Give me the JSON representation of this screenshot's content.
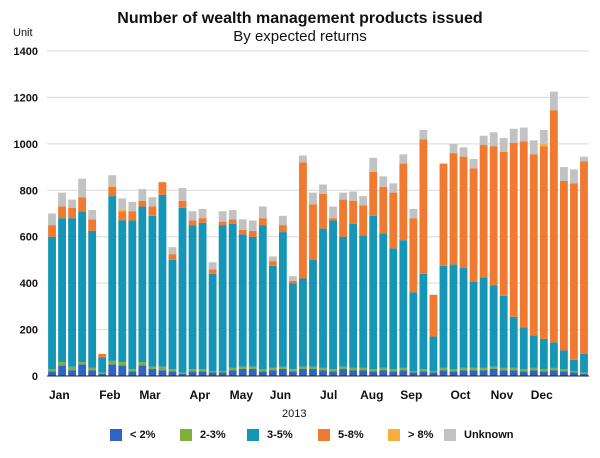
{
  "chart_data": {
    "type": "bar",
    "stacked": true,
    "title": "Number of wealth management products issued",
    "subtitle": "By expected returns",
    "ylabel": "Unit",
    "xlabel": "2013",
    "ylim": [
      0,
      1400
    ],
    "yticks": [
      0,
      200,
      400,
      600,
      800,
      1000,
      1200,
      1400
    ],
    "grid": "horizontal",
    "legend_position": "bottom",
    "month_labels": [
      "Jan",
      "Feb",
      "Mar",
      "Apr",
      "May",
      "Jun",
      "Jul",
      "Aug",
      "Sep",
      "Oct",
      "Nov",
      "Dec"
    ],
    "month_start_week": [
      0,
      5,
      9,
      14,
      18,
      22,
      27,
      31,
      35,
      40,
      44,
      48
    ],
    "series": [
      {
        "name": "< 2%",
        "color": "#2f64c4",
        "values": [
          20,
          45,
          25,
          50,
          25,
          10,
          50,
          45,
          20,
          45,
          30,
          25,
          20,
          10,
          20,
          20,
          15,
          15,
          25,
          30,
          30,
          20,
          25,
          30,
          20,
          30,
          30,
          25,
          20,
          30,
          25,
          25,
          20,
          25,
          20,
          25,
          15,
          20,
          15,
          25,
          20,
          25,
          25,
          25,
          30,
          25,
          25,
          20,
          25,
          20,
          25,
          20,
          15,
          10
        ]
      },
      {
        "name": "2-3%",
        "color": "#7fb03c",
        "values": [
          10,
          15,
          15,
          10,
          10,
          5,
          15,
          15,
          10,
          15,
          10,
          15,
          10,
          5,
          10,
          10,
          5,
          5,
          10,
          10,
          10,
          10,
          10,
          10,
          10,
          10,
          10,
          10,
          10,
          10,
          10,
          10,
          10,
          10,
          10,
          10,
          5,
          10,
          5,
          10,
          10,
          10,
          10,
          10,
          10,
          10,
          10,
          10,
          10,
          10,
          10,
          10,
          5,
          5
        ]
      },
      {
        "name": "3-5%",
        "color": "#1596b6",
        "values": [
          570,
          620,
          640,
          650,
          590,
          65,
          710,
          610,
          640,
          670,
          650,
          740,
          470,
          710,
          620,
          630,
          420,
          630,
          620,
          570,
          560,
          620,
          440,
          580,
          370,
          380,
          460,
          600,
          640,
          560,
          620,
          570,
          660,
          580,
          520,
          550,
          340,
          410,
          150,
          440,
          450,
          430,
          370,
          390,
          350,
          310,
          220,
          180,
          140,
          130,
          110,
          80,
          50,
          80
        ]
      },
      {
        "name": "5-8%",
        "color": "#f07a30",
        "values": [
          50,
          50,
          45,
          60,
          50,
          15,
          40,
          40,
          40,
          25,
          40,
          55,
          25,
          30,
          20,
          20,
          20,
          15,
          20,
          20,
          25,
          30,
          20,
          30,
          10,
          500,
          240,
          150,
          10,
          160,
          100,
          130,
          190,
          200,
          240,
          330,
          320,
          580,
          180,
          440,
          480,
          480,
          490,
          570,
          600,
          620,
          750,
          800,
          780,
          830,
          1000,
          730,
          760,
          830
        ]
      },
      {
        "name": "> 8%",
        "color": "#f7ae3c",
        "values": [
          0,
          0,
          0,
          0,
          0,
          0,
          5,
          5,
          0,
          0,
          0,
          0,
          0,
          0,
          0,
          0,
          0,
          0,
          0,
          0,
          0,
          0,
          0,
          0,
          0,
          0,
          0,
          0,
          0,
          0,
          0,
          0,
          0,
          0,
          0,
          0,
          0,
          0,
          0,
          0,
          0,
          0,
          0,
          0,
          0,
          0,
          0,
          0,
          0,
          10,
          0,
          0,
          0,
          0
        ]
      },
      {
        "name": "Unknown",
        "color": "#c2c2c2",
        "values": [
          50,
          60,
          35,
          80,
          40,
          0,
          45,
          50,
          40,
          50,
          40,
          0,
          30,
          55,
          40,
          40,
          30,
          45,
          40,
          45,
          45,
          50,
          20,
          40,
          20,
          30,
          50,
          40,
          50,
          30,
          40,
          40,
          60,
          45,
          40,
          40,
          40,
          40,
          0,
          0,
          40,
          40,
          40,
          40,
          60,
          60,
          60,
          60,
          60,
          60,
          80,
          60,
          60,
          20
        ]
      }
    ]
  }
}
